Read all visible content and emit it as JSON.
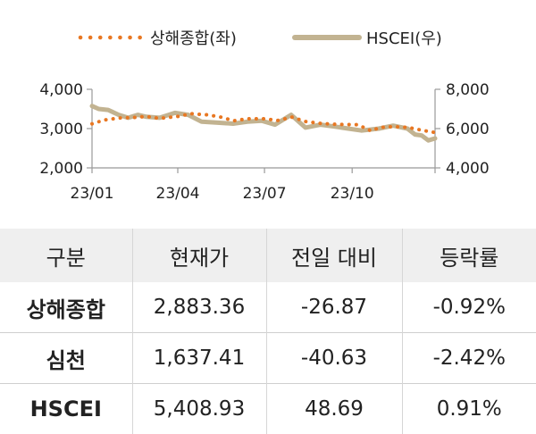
{
  "chart_data": {
    "type": "line",
    "legend": [
      "상해종합(좌)",
      "HSCEI(우)"
    ],
    "legend_position": "top",
    "x_ticks": [
      "23/01",
      "23/04",
      "23/07",
      "23/10"
    ],
    "y_left": {
      "ticks": [
        "4,000",
        "3,000",
        "2,000"
      ],
      "range": [
        2000,
        4000
      ]
    },
    "y_right": {
      "ticks": [
        "8,000",
        "6,000",
        "4,000"
      ],
      "range": [
        4000,
        8000
      ]
    },
    "x_range": [
      "2023-01-03",
      "2023-12-29"
    ],
    "series": [
      {
        "name": "상해종합(좌)",
        "axis": "left",
        "color": "#E87722",
        "style": "dotted",
        "x": [
          "2023-01-03",
          "2023-01-16",
          "2023-02-01",
          "2023-02-15",
          "2023-03-01",
          "2023-03-15",
          "2023-04-03",
          "2023-04-17",
          "2023-05-04",
          "2023-05-17",
          "2023-06-01",
          "2023-06-15",
          "2023-07-03",
          "2023-07-17",
          "2023-08-01",
          "2023-08-15",
          "2023-09-01",
          "2023-09-15",
          "2023-10-09",
          "2023-10-23",
          "2023-11-01",
          "2023-11-15",
          "2023-12-01",
          "2023-12-15",
          "2023-12-29"
        ],
        "values": [
          3120,
          3220,
          3270,
          3280,
          3310,
          3260,
          3310,
          3380,
          3350,
          3300,
          3200,
          3250,
          3250,
          3210,
          3290,
          3180,
          3130,
          3110,
          3100,
          2940,
          3030,
          3050,
          3030,
          2960,
          2900
        ]
      },
      {
        "name": "HSCEI(우)",
        "axis": "right",
        "color": "#C2B391",
        "style": "solid",
        "x": [
          "2023-01-03",
          "2023-01-10",
          "2023-01-20",
          "2023-01-31",
          "2023-02-10",
          "2023-02-20",
          "2023-03-01",
          "2023-03-15",
          "2023-03-31",
          "2023-04-14",
          "2023-04-28",
          "2023-05-15",
          "2023-05-31",
          "2023-06-15",
          "2023-06-30",
          "2023-07-14",
          "2023-07-31",
          "2023-08-15",
          "2023-08-31",
          "2023-09-15",
          "2023-09-29",
          "2023-10-13",
          "2023-10-31",
          "2023-11-15",
          "2023-11-30",
          "2023-12-08",
          "2023-12-15",
          "2023-12-22",
          "2023-12-29"
        ],
        "values": [
          7150,
          7000,
          6950,
          6700,
          6550,
          6700,
          6600,
          6550,
          6800,
          6700,
          6350,
          6300,
          6250,
          6350,
          6400,
          6200,
          6700,
          6050,
          6200,
          6100,
          6000,
          5900,
          6000,
          6150,
          6000,
          5700,
          5650,
          5400,
          5500
        ]
      }
    ]
  },
  "table": {
    "headers": [
      "구분",
      "현재가",
      "전일 대비",
      "등락률"
    ],
    "rows": [
      [
        "상해종합",
        "2,883.36",
        "-26.87",
        "-0.92%"
      ],
      [
        "심천",
        "1,637.41",
        "-40.63",
        "-2.42%"
      ],
      [
        "HSCEI",
        "5,408.93",
        "48.69",
        "0.91%"
      ]
    ]
  }
}
